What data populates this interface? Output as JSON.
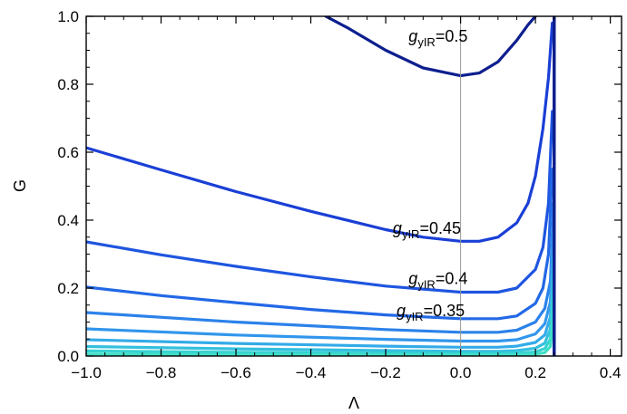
{
  "chart_data": {
    "type": "line",
    "title": "",
    "xlabel": "Λ",
    "ylabel": "G",
    "xlim": [
      -1.0,
      0.43
    ],
    "ylim": [
      0.0,
      1.0
    ],
    "xticks": [
      "−1.0",
      "−0.8",
      "−0.6",
      "−0.4",
      "−0.2",
      "0.0",
      "0.2",
      "0.4"
    ],
    "xtick_values": [
      -1.0,
      -0.8,
      -0.6,
      -0.4,
      -0.2,
      0.0,
      0.2,
      0.4
    ],
    "yticks": [
      "0.0",
      "0.2",
      "0.4",
      "0.6",
      "0.8",
      "1.0"
    ],
    "ytick_values": [
      0.0,
      0.2,
      0.4,
      0.6,
      0.8,
      1.0
    ],
    "grid": false,
    "pole_line": {
      "x": 0.25
    },
    "reference_line": {
      "x": 0.0,
      "color": "#999999"
    },
    "series": [
      {
        "g": 0.5,
        "color": "#0d1f8f",
        "x": [
          -0.36,
          -0.3,
          -0.2,
          -0.1,
          0.0,
          0.05,
          0.1,
          0.15,
          0.18,
          0.2
        ],
        "y": [
          1.0,
          0.965,
          0.9,
          0.848,
          0.825,
          0.833,
          0.866,
          0.929,
          0.975,
          1.0
        ]
      },
      {
        "g": 0.45,
        "color": "#1a3fd6",
        "x": [
          -1.0,
          -0.8,
          -0.6,
          -0.4,
          -0.2,
          -0.1,
          0.0,
          0.05,
          0.1,
          0.15,
          0.18,
          0.2,
          0.22,
          0.235,
          0.245
        ],
        "y": [
          0.613,
          0.548,
          0.484,
          0.426,
          0.372,
          0.35,
          0.338,
          0.338,
          0.35,
          0.392,
          0.45,
          0.53,
          0.67,
          0.82,
          0.98
        ]
      },
      {
        "g": 0.4,
        "color": "#1e55e0",
        "x": [
          -1.0,
          -0.8,
          -0.6,
          -0.4,
          -0.2,
          0.0,
          0.1,
          0.15,
          0.2,
          0.22,
          0.235,
          0.245
        ],
        "y": [
          0.336,
          0.298,
          0.264,
          0.233,
          0.206,
          0.188,
          0.188,
          0.2,
          0.255,
          0.32,
          0.45,
          0.72
        ]
      },
      {
        "g": 0.35,
        "color": "#2268e6",
        "x": [
          -1.0,
          -0.8,
          -0.6,
          -0.4,
          -0.2,
          0.0,
          0.1,
          0.15,
          0.2,
          0.22,
          0.235,
          0.245
        ],
        "y": [
          0.203,
          0.178,
          0.157,
          0.137,
          0.121,
          0.11,
          0.11,
          0.118,
          0.155,
          0.2,
          0.3,
          0.55
        ]
      },
      {
        "color": "#2b82ea",
        "x": [
          -1.0,
          -0.6,
          -0.2,
          0.0,
          0.1,
          0.15,
          0.2,
          0.225,
          0.24,
          0.248
        ],
        "y": [
          0.128,
          0.1,
          0.078,
          0.07,
          0.07,
          0.076,
          0.1,
          0.14,
          0.22,
          0.45
        ]
      },
      {
        "color": "#3196ec",
        "x": [
          -1.0,
          -0.6,
          -0.2,
          0.0,
          0.1,
          0.15,
          0.2,
          0.225,
          0.24,
          0.248
        ],
        "y": [
          0.08,
          0.062,
          0.049,
          0.044,
          0.044,
          0.048,
          0.065,
          0.095,
          0.16,
          0.37
        ]
      },
      {
        "color": "#33abe8",
        "x": [
          -1.0,
          -0.6,
          -0.2,
          0.0,
          0.1,
          0.15,
          0.2,
          0.225,
          0.24,
          0.248
        ],
        "y": [
          0.048,
          0.037,
          0.029,
          0.026,
          0.026,
          0.029,
          0.04,
          0.062,
          0.115,
          0.3
        ]
      },
      {
        "color": "#34c0de",
        "x": [
          -1.0,
          -0.6,
          -0.2,
          0.0,
          0.1,
          0.15,
          0.2,
          0.225,
          0.24,
          0.248
        ],
        "y": [
          0.028,
          0.021,
          0.016,
          0.014,
          0.014,
          0.016,
          0.023,
          0.038,
          0.08,
          0.24
        ]
      },
      {
        "color": "#36d2d2",
        "x": [
          -1.0,
          -0.6,
          -0.2,
          0.0,
          0.1,
          0.15,
          0.2,
          0.225,
          0.24,
          0.248
        ],
        "y": [
          0.015,
          0.011,
          0.008,
          0.007,
          0.007,
          0.008,
          0.012,
          0.022,
          0.05,
          0.18
        ]
      },
      {
        "color": "#3fdfc6",
        "x": [
          -1.0,
          -0.6,
          -0.2,
          0.0,
          0.1,
          0.15,
          0.2,
          0.225,
          0.24,
          0.248
        ],
        "y": [
          0.006,
          0.004,
          0.003,
          0.003,
          0.003,
          0.003,
          0.005,
          0.01,
          0.028,
          0.12
        ]
      }
    ],
    "annotations": [
      {
        "base": "g",
        "sub": "yIR",
        "value": "=0.5",
        "x": -0.06,
        "y": 0.925
      },
      {
        "base": "g",
        "sub": "yIR",
        "value": "=0.45",
        "x": -0.09,
        "y": 0.36
      },
      {
        "base": "g",
        "sub": "yIR",
        "value": "=0.4",
        "x": -0.06,
        "y": 0.212
      },
      {
        "base": "g",
        "sub": "yIR",
        "value": "=0.35",
        "x": -0.08,
        "y": 0.118
      }
    ]
  }
}
